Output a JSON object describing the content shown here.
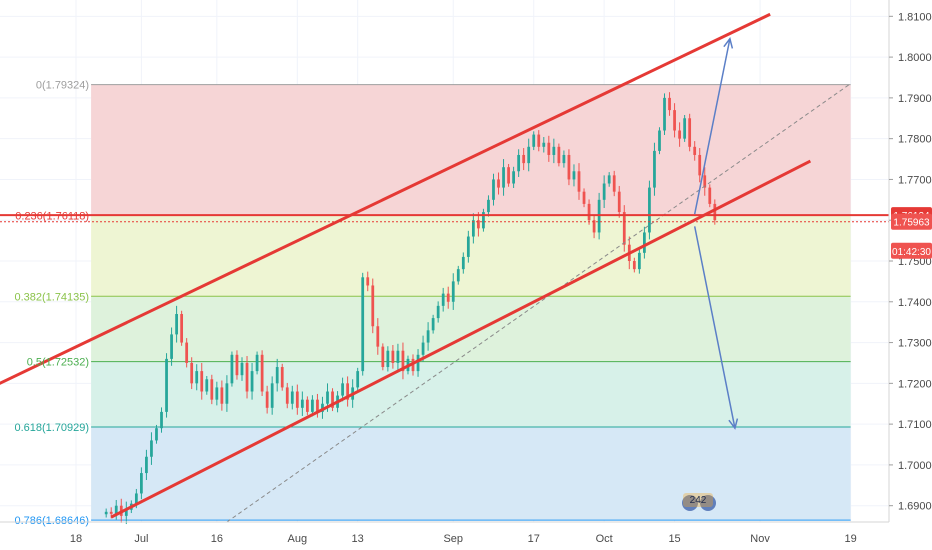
{
  "chart_data": {
    "type": "candlestick",
    "colors": {
      "up": "#26a69a",
      "down": "#ef5350",
      "channel": "#e53935",
      "arrow": "#5b7fc7",
      "current_line": "#e53935",
      "grid": "#f0f3fa",
      "axis_text": "#4a4a4a"
    },
    "y_axis": {
      "side": "right",
      "min": 1.686,
      "max": 1.814,
      "ticks": [
        "1.81000",
        "1.80000",
        "1.79000",
        "1.78000",
        "1.77000",
        "1.76000",
        "1.75000",
        "1.74000",
        "1.73000",
        "1.72000",
        "1.71000",
        "1.70000",
        "1.69000"
      ]
    },
    "x_axis": {
      "ticks": [
        {
          "label": "18",
          "day": 0
        },
        {
          "label": "Jul",
          "day": 13
        },
        {
          "label": "16",
          "day": 28
        },
        {
          "label": "Aug",
          "day": 44
        },
        {
          "label": "13",
          "day": 56
        },
        {
          "label": "Sep",
          "day": 75
        },
        {
          "label": "17",
          "day": 91
        },
        {
          "label": "Oct",
          "day": 105
        },
        {
          "label": "15",
          "day": 119
        },
        {
          "label": "Nov",
          "day": 136
        },
        {
          "label": "19",
          "day": 154
        }
      ]
    },
    "fibonacci": [
      {
        "label": "0(1.79324)",
        "value": 1.79324,
        "color": "#9e9e9e"
      },
      {
        "label": "0.236(1.76118)",
        "value": 1.76118,
        "color": "#e53935"
      },
      {
        "label": "0.382(1.74135)",
        "value": 1.74135,
        "color": "#8bc34a"
      },
      {
        "label": "0.5(1.72532)",
        "value": 1.72532,
        "color": "#4caf50"
      },
      {
        "label": "0.618(1.70929)",
        "value": 1.70929,
        "color": "#26a69a"
      },
      {
        "label": "0.786(1.68646)",
        "value": 1.68646,
        "color": "#2196f3"
      }
    ],
    "fib_zone_fills": [
      "#f6d5d6",
      "#eef5d3",
      "#def2dc",
      "#d7f1e9",
      "#d6e8f6"
    ],
    "fib_range_days": [
      3,
      154
    ],
    "price_tags": [
      {
        "label": "1.76124",
        "value": 1.76124,
        "bg": "#e53935"
      },
      {
        "label": "1.75963",
        "value": 1.75963,
        "bg": "#ef5350"
      },
      {
        "label": "01:42:30",
        "value": 1.7525,
        "bg": "#ef5350"
      }
    ],
    "channel": {
      "upper": [
        [
          -16,
          1.7195
        ],
        [
          138,
          1.8105
        ]
      ],
      "lower": [
        [
          7,
          1.6872
        ],
        [
          146,
          1.7745
        ]
      ],
      "trend": [
        [
          30,
          1.686
        ],
        [
          154,
          1.7935
        ]
      ]
    },
    "arrows": [
      {
        "from": [
          123,
          1.7615
        ],
        "to": [
          130,
          1.8045
        ]
      },
      {
        "from": [
          123,
          1.7585
        ],
        "to": [
          131,
          1.709
        ]
      }
    ],
    "candles_close": [
      1.6885,
      1.688,
      1.69,
      1.6875,
      1.689,
      1.6905,
      1.693,
      1.698,
      1.702,
      1.706,
      1.709,
      1.713,
      1.726,
      1.732,
      1.737,
      1.73,
      1.725,
      1.72,
      1.723,
      1.718,
      1.721,
      1.716,
      1.719,
      1.715,
      1.72,
      1.727,
      1.722,
      1.725,
      1.718,
      1.723,
      1.727,
      1.718,
      1.714,
      1.72,
      1.724,
      1.719,
      1.715,
      1.718,
      1.714,
      1.716,
      1.713,
      1.716,
      1.713,
      1.715,
      1.718,
      1.714,
      1.717,
      1.72,
      1.716,
      1.719,
      1.723,
      1.746,
      1.744,
      1.734,
      1.729,
      1.724,
      1.728,
      1.725,
      1.728,
      1.723,
      1.726,
      1.723,
      1.727,
      1.73,
      1.733,
      1.736,
      1.739,
      1.742,
      1.74,
      1.745,
      1.748,
      1.751,
      1.756,
      1.76,
      1.758,
      1.762,
      1.765,
      1.77,
      1.768,
      1.773,
      1.769,
      1.772,
      1.776,
      1.774,
      1.778,
      1.781,
      1.778,
      1.779,
      1.776,
      1.778,
      1.774,
      1.776,
      1.77,
      1.772,
      1.767,
      1.764,
      1.76,
      1.757,
      1.765,
      1.769,
      1.771,
      1.767,
      1.762,
      1.754,
      1.75,
      1.748,
      1.752,
      1.757,
      1.768,
      1.777,
      1.782,
      1.79,
      1.787,
      1.782,
      1.78,
      1.785,
      1.778,
      1.776,
      1.771,
      1.768,
      1.764,
      1.76
    ]
  },
  "watermark": {
    "label": "242"
  }
}
